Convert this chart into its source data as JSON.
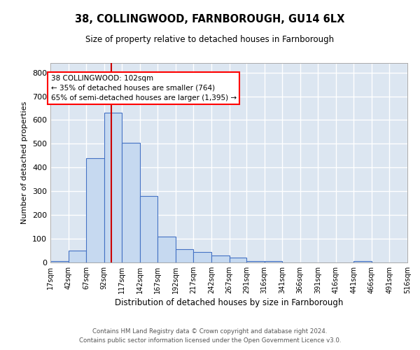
{
  "title": "38, COLLINGWOOD, FARNBOROUGH, GU14 6LX",
  "subtitle": "Size of property relative to detached houses in Farnborough",
  "xlabel": "Distribution of detached houses by size in Farnborough",
  "ylabel": "Number of detached properties",
  "footer_line1": "Contains HM Land Registry data © Crown copyright and database right 2024.",
  "footer_line2": "Contains public sector information licensed under the Open Government Licence v3.0.",
  "bar_color": "#c6d9f0",
  "bar_edge_color": "#4472c4",
  "background_color": "#dce6f1",
  "grid_color": "#ffffff",
  "annotation_line1": "38 COLLINGWOOD: 102sqm",
  "annotation_line2": "← 35% of detached houses are smaller (764)",
  "annotation_line3": "65% of semi-detached houses are larger (1,395) →",
  "property_size": 102,
  "red_line_color": "#cc0000",
  "ylim": [
    0,
    840
  ],
  "yticks": [
    0,
    100,
    200,
    300,
    400,
    500,
    600,
    700,
    800
  ],
  "bin_edges": [
    17,
    42,
    67,
    92,
    117,
    142,
    167,
    192,
    217,
    242,
    267,
    291,
    316,
    341,
    366,
    391,
    416,
    441,
    466,
    491,
    516
  ],
  "bar_heights": [
    5,
    50,
    440,
    630,
    505,
    280,
    110,
    55,
    45,
    30,
    22,
    5,
    5,
    0,
    0,
    0,
    0,
    5,
    0,
    0
  ]
}
